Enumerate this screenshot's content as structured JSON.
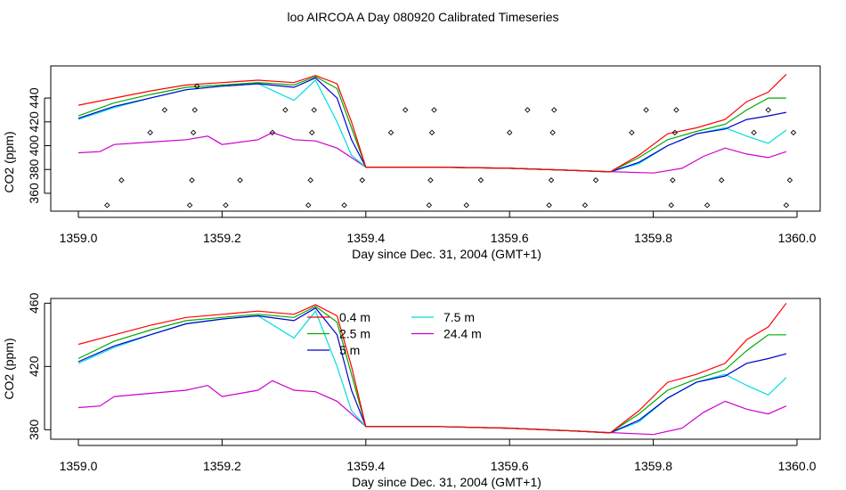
{
  "title": "loo AIRCOA A  Day 080920  Calibrated Timeseries",
  "chart_data": [
    {
      "type": "line",
      "xlabel": "Day since Dec. 31, 2004 (GMT+1)",
      "ylabel": "CO2 (ppm)",
      "xlim": [
        1359.0,
        1360.0
      ],
      "ylim": [
        345,
        467
      ],
      "xticks": [
        "1359.0",
        "1359.2",
        "1359.4",
        "1359.6",
        "1359.8",
        "1360.0"
      ],
      "yticks": [
        "360",
        "380",
        "400",
        "420",
        "440"
      ],
      "grid": false,
      "legend": "none",
      "series": [
        {
          "color": "#ff0000",
          "x": [
            1359.0,
            1359.05,
            1359.1,
            1359.15,
            1359.2,
            1359.25,
            1359.3,
            1359.33,
            1359.36,
            1359.38,
            1359.4,
            1359.45,
            1359.5,
            1359.6,
            1359.7,
            1359.74,
            1359.78,
            1359.82,
            1359.86,
            1359.9,
            1359.93,
            1359.96,
            1359.985
          ],
          "y": [
            434,
            440,
            446,
            451,
            453,
            455,
            453,
            459,
            452,
            420,
            382,
            382,
            382,
            381,
            379,
            378,
            392,
            410,
            415,
            422,
            437,
            445,
            460
          ]
        },
        {
          "color": "#00aa00",
          "x": [
            1359.0,
            1359.05,
            1359.1,
            1359.15,
            1359.2,
            1359.25,
            1359.3,
            1359.33,
            1359.36,
            1359.38,
            1359.4,
            1359.45,
            1359.5,
            1359.6,
            1359.7,
            1359.74,
            1359.78,
            1359.82,
            1359.86,
            1359.9,
            1359.93,
            1359.96,
            1359.985
          ],
          "y": [
            425,
            436,
            443,
            449,
            451,
            453,
            451,
            458,
            448,
            415,
            382,
            382,
            382,
            381,
            379,
            378,
            390,
            405,
            412,
            418,
            430,
            440,
            440
          ]
        },
        {
          "color": "#0000cc",
          "x": [
            1359.0,
            1359.05,
            1359.1,
            1359.15,
            1359.2,
            1359.25,
            1359.3,
            1359.33,
            1359.36,
            1359.38,
            1359.4,
            1359.45,
            1359.5,
            1359.6,
            1359.7,
            1359.74,
            1359.78,
            1359.82,
            1359.86,
            1359.9,
            1359.93,
            1359.96,
            1359.985
          ],
          "y": [
            423,
            433,
            440,
            447,
            450,
            452,
            449,
            457,
            440,
            405,
            382,
            382,
            382,
            381,
            379,
            378,
            386,
            400,
            410,
            414,
            422,
            425,
            428
          ]
        },
        {
          "color": "#00dddd",
          "x": [
            1359.0,
            1359.05,
            1359.1,
            1359.15,
            1359.2,
            1359.25,
            1359.3,
            1359.33,
            1359.36,
            1359.38,
            1359.4,
            1359.45,
            1359.5,
            1359.6,
            1359.7,
            1359.74,
            1359.78,
            1359.82,
            1359.86,
            1359.9,
            1359.93,
            1359.96,
            1359.985
          ],
          "y": [
            422,
            432,
            440,
            447,
            450,
            452,
            438,
            455,
            420,
            392,
            382,
            382,
            382,
            381,
            379,
            378,
            385,
            400,
            410,
            415,
            408,
            402,
            413
          ]
        },
        {
          "color": "#cc00cc",
          "x": [
            1359.0,
            1359.03,
            1359.05,
            1359.1,
            1359.15,
            1359.18,
            1359.2,
            1359.25,
            1359.27,
            1359.3,
            1359.33,
            1359.36,
            1359.38,
            1359.4,
            1359.45,
            1359.5,
            1359.6,
            1359.7,
            1359.8,
            1359.84,
            1359.87,
            1359.9,
            1359.93,
            1359.96,
            1359.985
          ],
          "y": [
            394,
            395,
            401,
            403,
            405,
            408,
            401,
            405,
            411,
            405,
            404,
            398,
            390,
            382,
            382,
            382,
            381,
            379,
            377,
            381,
            391,
            398,
            393,
            390,
            395
          ]
        }
      ],
      "markers": {
        "symbol": "diamond",
        "color": "#000000",
        "x": [
          1359.04,
          1359.06,
          1359.1,
          1359.12,
          1359.155,
          1359.158,
          1359.16,
          1359.162,
          1359.165,
          1359.205,
          1359.225,
          1359.27,
          1359.288,
          1359.32,
          1359.323,
          1359.325,
          1359.328,
          1359.37,
          1359.395,
          1359.435,
          1359.455,
          1359.488,
          1359.49,
          1359.492,
          1359.495,
          1359.54,
          1359.56,
          1359.6,
          1359.625,
          1359.655,
          1359.658,
          1359.66,
          1359.662,
          1359.705,
          1359.72,
          1359.77,
          1359.79,
          1359.825,
          1359.827,
          1359.83,
          1359.832,
          1359.875,
          1359.895,
          1359.94,
          1359.96,
          1359.985,
          1359.99,
          1359.995
        ],
        "y": [
          350,
          371,
          411,
          430,
          350,
          371,
          411,
          430,
          450,
          350,
          371,
          411,
          430,
          350,
          371,
          411,
          430,
          350,
          371,
          411,
          430,
          350,
          371,
          411,
          430,
          350,
          371,
          411,
          430,
          350,
          371,
          411,
          430,
          350,
          371,
          411,
          430,
          350,
          371,
          411,
          430,
          350,
          371,
          411,
          430,
          350,
          371,
          411
        ]
      }
    },
    {
      "type": "line",
      "xlabel": "Day since Dec. 31, 2004 (GMT+1)",
      "ylabel": "CO2 (ppm)",
      "xlim": [
        1359.0,
        1360.0
      ],
      "ylim": [
        374,
        463
      ],
      "xticks": [
        "1359.0",
        "1359.2",
        "1359.4",
        "1359.6",
        "1359.8",
        "1360.0"
      ],
      "yticks": [
        "380",
        "420",
        "460"
      ],
      "grid": false,
      "legend": "top-center",
      "series": [
        {
          "name": "0.4 m",
          "color": "#ff0000",
          "x": [
            1359.0,
            1359.05,
            1359.1,
            1359.15,
            1359.2,
            1359.25,
            1359.3,
            1359.33,
            1359.36,
            1359.38,
            1359.4,
            1359.45,
            1359.5,
            1359.6,
            1359.7,
            1359.74,
            1359.78,
            1359.82,
            1359.86,
            1359.9,
            1359.93,
            1359.96,
            1359.985
          ],
          "y": [
            434,
            440,
            446,
            451,
            453,
            455,
            453,
            459,
            452,
            420,
            382,
            382,
            382,
            381,
            379,
            378,
            392,
            410,
            415,
            422,
            437,
            445,
            460
          ]
        },
        {
          "name": "2.5 m",
          "color": "#00aa00",
          "x": [
            1359.0,
            1359.05,
            1359.1,
            1359.15,
            1359.2,
            1359.25,
            1359.3,
            1359.33,
            1359.36,
            1359.38,
            1359.4,
            1359.45,
            1359.5,
            1359.6,
            1359.7,
            1359.74,
            1359.78,
            1359.82,
            1359.86,
            1359.9,
            1359.93,
            1359.96,
            1359.985
          ],
          "y": [
            425,
            436,
            443,
            449,
            451,
            453,
            451,
            458,
            448,
            415,
            382,
            382,
            382,
            381,
            379,
            378,
            390,
            405,
            412,
            418,
            430,
            440,
            440
          ]
        },
        {
          "name": "5 m",
          "color": "#0000cc",
          "x": [
            1359.0,
            1359.05,
            1359.1,
            1359.15,
            1359.2,
            1359.25,
            1359.3,
            1359.33,
            1359.36,
            1359.38,
            1359.4,
            1359.45,
            1359.5,
            1359.6,
            1359.7,
            1359.74,
            1359.78,
            1359.82,
            1359.86,
            1359.9,
            1359.93,
            1359.96,
            1359.985
          ],
          "y": [
            423,
            433,
            440,
            447,
            450,
            452,
            449,
            457,
            440,
            405,
            382,
            382,
            382,
            381,
            379,
            378,
            386,
            400,
            410,
            414,
            422,
            425,
            428
          ]
        },
        {
          "name": "7.5 m",
          "color": "#00dddd",
          "x": [
            1359.0,
            1359.05,
            1359.1,
            1359.15,
            1359.2,
            1359.25,
            1359.3,
            1359.33,
            1359.36,
            1359.38,
            1359.4,
            1359.45,
            1359.5,
            1359.6,
            1359.7,
            1359.74,
            1359.78,
            1359.82,
            1359.86,
            1359.9,
            1359.93,
            1359.96,
            1359.985
          ],
          "y": [
            422,
            432,
            440,
            447,
            450,
            452,
            438,
            455,
            420,
            392,
            382,
            382,
            382,
            381,
            379,
            378,
            385,
            400,
            410,
            415,
            408,
            402,
            413
          ]
        },
        {
          "name": "24.4 m",
          "color": "#cc00cc",
          "x": [
            1359.0,
            1359.03,
            1359.05,
            1359.1,
            1359.15,
            1359.18,
            1359.2,
            1359.25,
            1359.27,
            1359.3,
            1359.33,
            1359.36,
            1359.38,
            1359.4,
            1359.45,
            1359.5,
            1359.6,
            1359.7,
            1359.8,
            1359.84,
            1359.87,
            1359.9,
            1359.93,
            1359.96,
            1359.985
          ],
          "y": [
            394,
            395,
            401,
            403,
            405,
            408,
            401,
            405,
            411,
            405,
            404,
            398,
            390,
            382,
            382,
            382,
            381,
            379,
            377,
            381,
            391,
            398,
            393,
            390,
            395
          ]
        }
      ]
    }
  ]
}
